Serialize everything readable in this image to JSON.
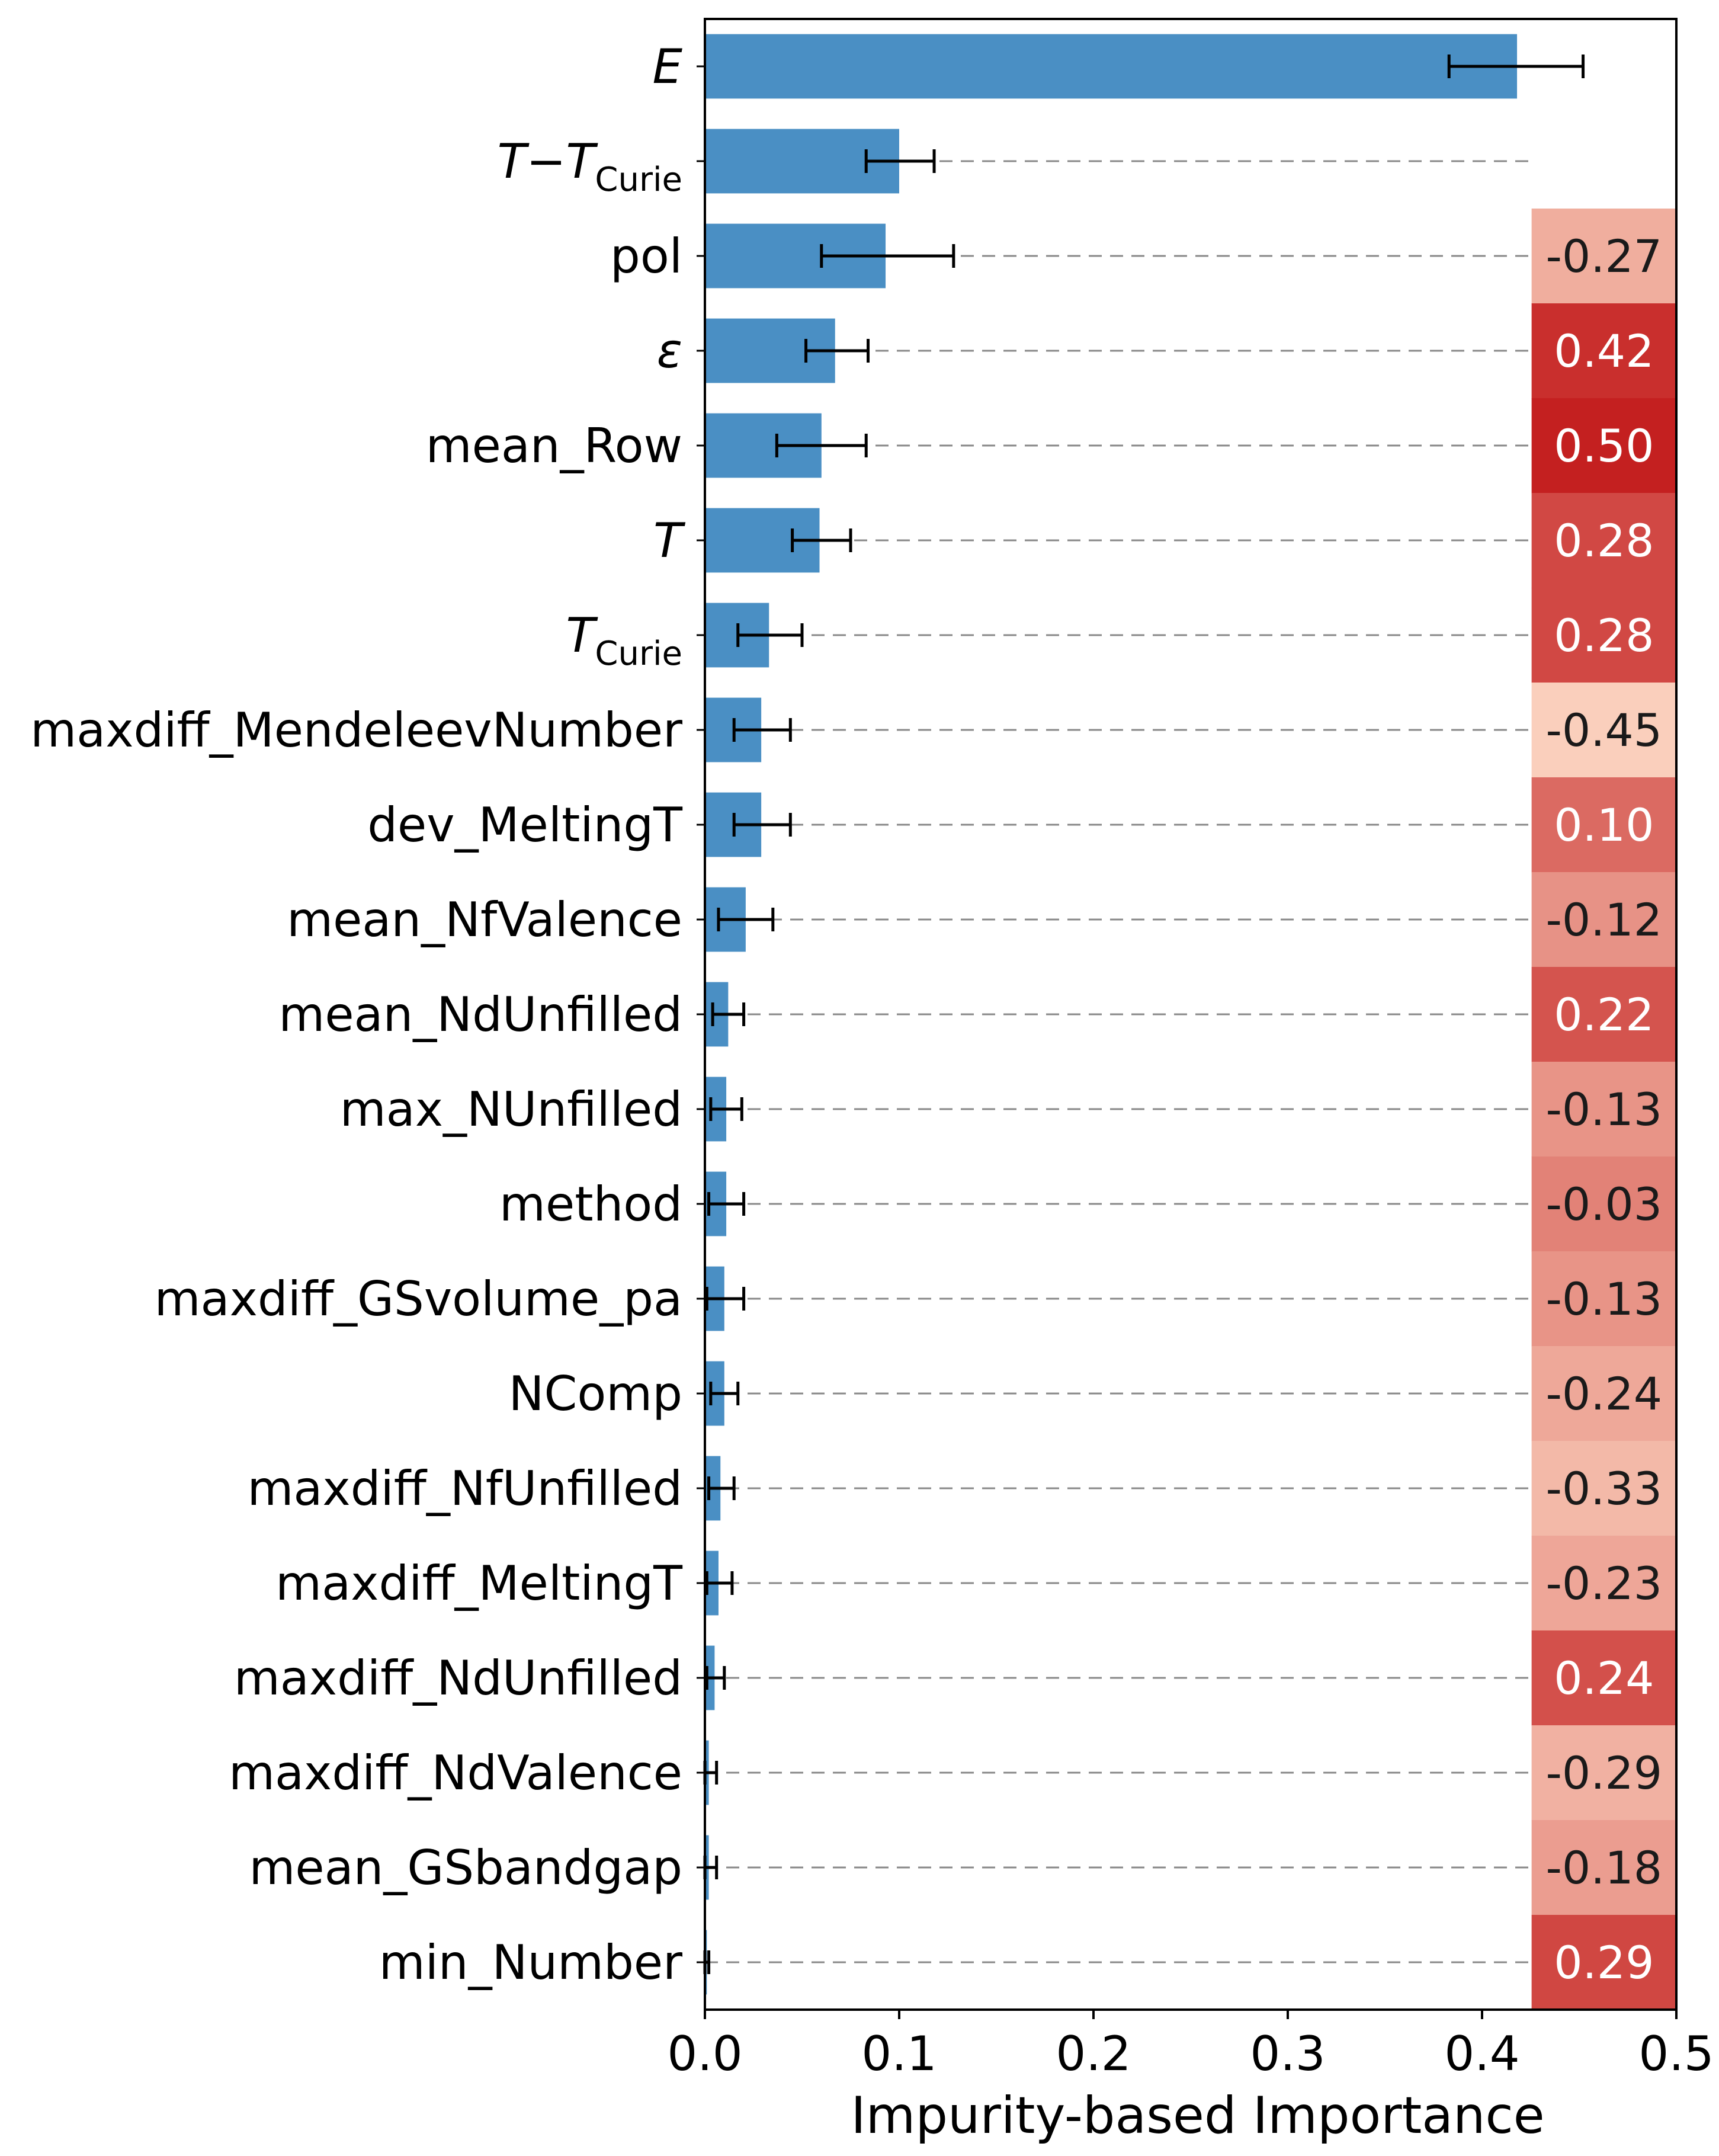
{
  "chart_data": {
    "type": "bar",
    "orientation": "horizontal",
    "xlabel": "Impurity-based Importance",
    "xlim": [
      0.0,
      0.5
    ],
    "xticks": [
      "0.0",
      "0.1",
      "0.2",
      "0.3",
      "0.4",
      "0.5"
    ],
    "bar_color": "#4a8fc4",
    "features": [
      {
        "name": "E",
        "italic": true,
        "sub": "",
        "importance": 0.418,
        "err_low": 0.383,
        "err_high": 0.452,
        "corr": null
      },
      {
        "name": "T−T",
        "italic": true,
        "sub": "Curie",
        "importance": 0.1,
        "err_low": 0.083,
        "err_high": 0.118,
        "corr": null
      },
      {
        "name": "pol",
        "italic": false,
        "sub": "",
        "importance": 0.093,
        "err_low": 0.06,
        "err_high": 0.128,
        "corr": "-0.27"
      },
      {
        "name": "ε",
        "italic": true,
        "sub": "",
        "importance": 0.067,
        "err_low": 0.052,
        "err_high": 0.084,
        "corr": "0.42"
      },
      {
        "name": "mean_Row",
        "italic": false,
        "sub": "",
        "importance": 0.06,
        "err_low": 0.037,
        "err_high": 0.083,
        "corr": "0.50"
      },
      {
        "name": "T",
        "italic": true,
        "sub": "",
        "importance": 0.059,
        "err_low": 0.045,
        "err_high": 0.075,
        "corr": "0.28"
      },
      {
        "name": "T",
        "italic": true,
        "sub": "Curie",
        "importance": 0.033,
        "err_low": 0.017,
        "err_high": 0.05,
        "corr": "0.28"
      },
      {
        "name": "maxdiff_MendeleevNumber",
        "italic": false,
        "sub": "",
        "importance": 0.029,
        "err_low": 0.015,
        "err_high": 0.044,
        "corr": "-0.45"
      },
      {
        "name": "dev_MeltingT",
        "italic": false,
        "sub": "",
        "importance": 0.029,
        "err_low": 0.015,
        "err_high": 0.044,
        "corr": "0.10"
      },
      {
        "name": "mean_NfValence",
        "italic": false,
        "sub": "",
        "importance": 0.021,
        "err_low": 0.007,
        "err_high": 0.035,
        "corr": "-0.12"
      },
      {
        "name": "mean_NdUnfilled",
        "italic": false,
        "sub": "",
        "importance": 0.012,
        "err_low": 0.004,
        "err_high": 0.02,
        "corr": "0.22"
      },
      {
        "name": "max_NUnfilled",
        "italic": false,
        "sub": "",
        "importance": 0.011,
        "err_low": 0.003,
        "err_high": 0.019,
        "corr": "-0.13"
      },
      {
        "name": "method",
        "italic": false,
        "sub": "",
        "importance": 0.011,
        "err_low": 0.002,
        "err_high": 0.02,
        "corr": "-0.03"
      },
      {
        "name": "maxdiff_GSvolume_pa",
        "italic": false,
        "sub": "",
        "importance": 0.01,
        "err_low": 0.001,
        "err_high": 0.02,
        "corr": "-0.13"
      },
      {
        "name": "NComp",
        "italic": false,
        "sub": "",
        "importance": 0.01,
        "err_low": 0.003,
        "err_high": 0.017,
        "corr": "-0.24"
      },
      {
        "name": "maxdiff_NfUnfilled",
        "italic": false,
        "sub": "",
        "importance": 0.008,
        "err_low": 0.002,
        "err_high": 0.015,
        "corr": "-0.33"
      },
      {
        "name": "maxdiff_MeltingT",
        "italic": false,
        "sub": "",
        "importance": 0.007,
        "err_low": 0.001,
        "err_high": 0.014,
        "corr": "-0.23"
      },
      {
        "name": "maxdiff_NdUnfilled",
        "italic": false,
        "sub": "",
        "importance": 0.005,
        "err_low": 0.001,
        "err_high": 0.01,
        "corr": "0.24"
      },
      {
        "name": "maxdiff_NdValence",
        "italic": false,
        "sub": "",
        "importance": 0.002,
        "err_low": 0.0,
        "err_high": 0.006,
        "corr": "-0.29"
      },
      {
        "name": "mean_GSbandgap",
        "italic": false,
        "sub": "",
        "importance": 0.002,
        "err_low": 0.0,
        "err_high": 0.006,
        "corr": "-0.18"
      },
      {
        "name": "min_Number",
        "italic": false,
        "sub": "",
        "importance": 0.001,
        "err_low": 0.0,
        "err_high": 0.002,
        "corr": "0.29"
      }
    ]
  }
}
